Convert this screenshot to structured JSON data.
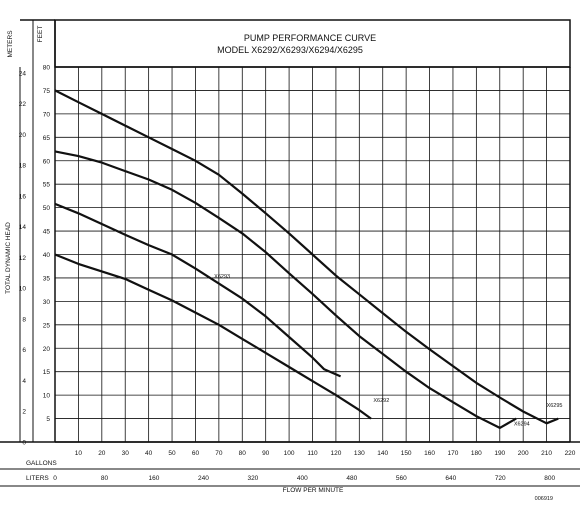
{
  "chart_data": {
    "type": "line",
    "title": "PUMP PERFORMANCE CURVE",
    "subtitle": "MODEL X6292/X6293/X6294/X6295",
    "xlabel": "FLOW PER MINUTE",
    "ylabel": "TOTAL DYNAMIC HEAD",
    "y_unit_metres": "METERS",
    "y_unit_feet": "FEET",
    "x_unit_gallons": "GALLONS",
    "x_unit_liters": "LITERS",
    "code": "006919",
    "xlim": [
      0,
      220
    ],
    "ylim": [
      0,
      80
    ],
    "grid": true,
    "gallon_ticks": [
      10,
      20,
      30,
      40,
      50,
      60,
      70,
      80,
      90,
      100,
      110,
      120,
      130,
      140,
      150,
      160,
      170,
      180,
      190,
      200,
      210,
      220
    ],
    "liter_ticks": [
      0,
      80,
      160,
      240,
      320,
      400,
      480,
      560,
      640,
      720,
      800
    ],
    "feet_ticks": [
      5,
      10,
      15,
      20,
      25,
      30,
      35,
      40,
      45,
      50,
      55,
      60,
      65,
      70,
      75,
      80
    ],
    "metre_ticks": [
      0,
      2,
      4,
      6,
      8,
      10,
      12,
      14,
      16,
      18,
      20,
      22,
      24
    ],
    "series": [
      {
        "name": "X6292",
        "x": [
          0,
          10,
          20,
          30,
          40,
          50,
          60,
          70,
          80,
          90,
          100,
          110,
          120,
          130,
          135
        ],
        "y": [
          40,
          38,
          36.4,
          34.8,
          32.5,
          30.2,
          27.6,
          25,
          22,
          19,
          16,
          13,
          10,
          6.8,
          5
        ]
      },
      {
        "name": "X6293",
        "x": [
          0,
          10,
          20,
          30,
          40,
          50,
          60,
          70,
          80,
          90,
          100,
          110,
          115,
          122
        ],
        "y": [
          50.8,
          48.8,
          46.5,
          44.2,
          42,
          40,
          37,
          33.8,
          30.6,
          26.8,
          22.4,
          18,
          15.5,
          14
        ]
      },
      {
        "name": "X6294",
        "x": [
          0,
          10,
          20,
          30,
          40,
          50,
          60,
          70,
          80,
          90,
          100,
          110,
          120,
          130,
          140,
          150,
          160,
          170,
          180,
          190,
          197
        ],
        "y": [
          62,
          61,
          59.6,
          57.8,
          56,
          53.8,
          51,
          47.8,
          44.5,
          40.5,
          36,
          31.6,
          27,
          22.6,
          18.8,
          15,
          11.5,
          8.5,
          5.5,
          3,
          5
        ]
      },
      {
        "name": "X6295",
        "x": [
          0,
          10,
          20,
          30,
          40,
          50,
          60,
          70,
          80,
          90,
          100,
          110,
          120,
          130,
          140,
          150,
          160,
          170,
          180,
          190,
          200,
          210,
          215
        ],
        "y": [
          75,
          72.5,
          70,
          67.5,
          65,
          62.5,
          60,
          57,
          53,
          48.8,
          44.5,
          40,
          35.5,
          31.5,
          27.5,
          23.5,
          19.8,
          16.2,
          12.6,
          9.5,
          6.5,
          4,
          5
        ]
      }
    ]
  }
}
